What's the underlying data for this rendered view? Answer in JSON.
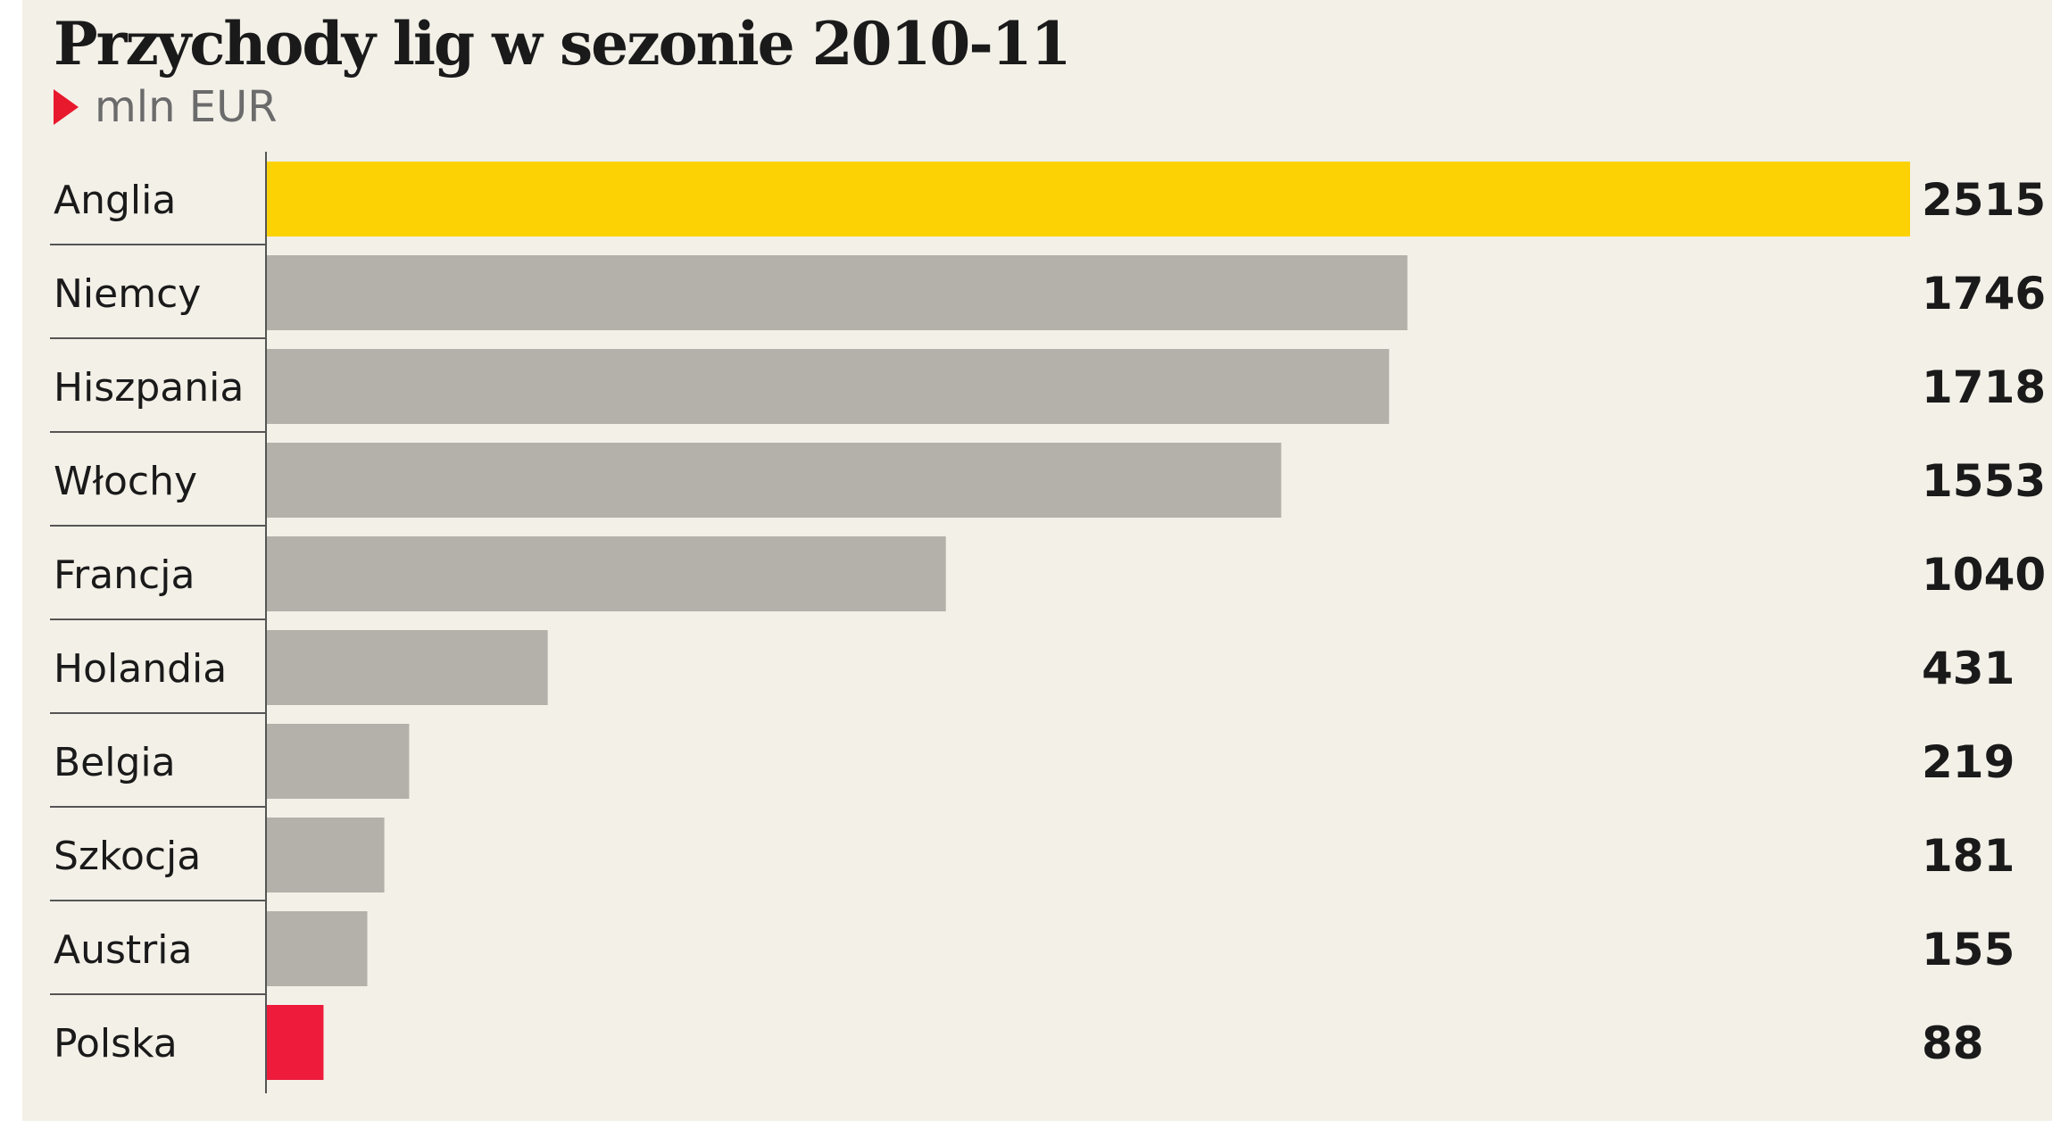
{
  "chart_data": {
    "type": "bar",
    "orientation": "horizontal",
    "title": "Przychody lig w sezonie 2010-11",
    "subtitle": "mln EUR",
    "categories": [
      "Anglia",
      "Niemcy",
      "Hiszpania",
      "Włochy",
      "Francja",
      "Holandia",
      "Belgia",
      "Szkocja",
      "Austria",
      "Polska"
    ],
    "values": [
      2515,
      1746,
      1718,
      1553,
      1040,
      431,
      219,
      181,
      155,
      88
    ],
    "value_labels": [
      "2515",
      "1746",
      "1718",
      "1553",
      "1040",
      "431",
      "219",
      "181",
      "155",
      "88"
    ],
    "xlim": [
      0,
      2515
    ],
    "grid": false,
    "colors": {
      "default_bar": "#b4b1aa",
      "highlight_first": "#fcd205",
      "highlight_last": "#ee1b3b",
      "background": "#f3f0e8",
      "subtitle_marker": "#e8192c"
    }
  }
}
